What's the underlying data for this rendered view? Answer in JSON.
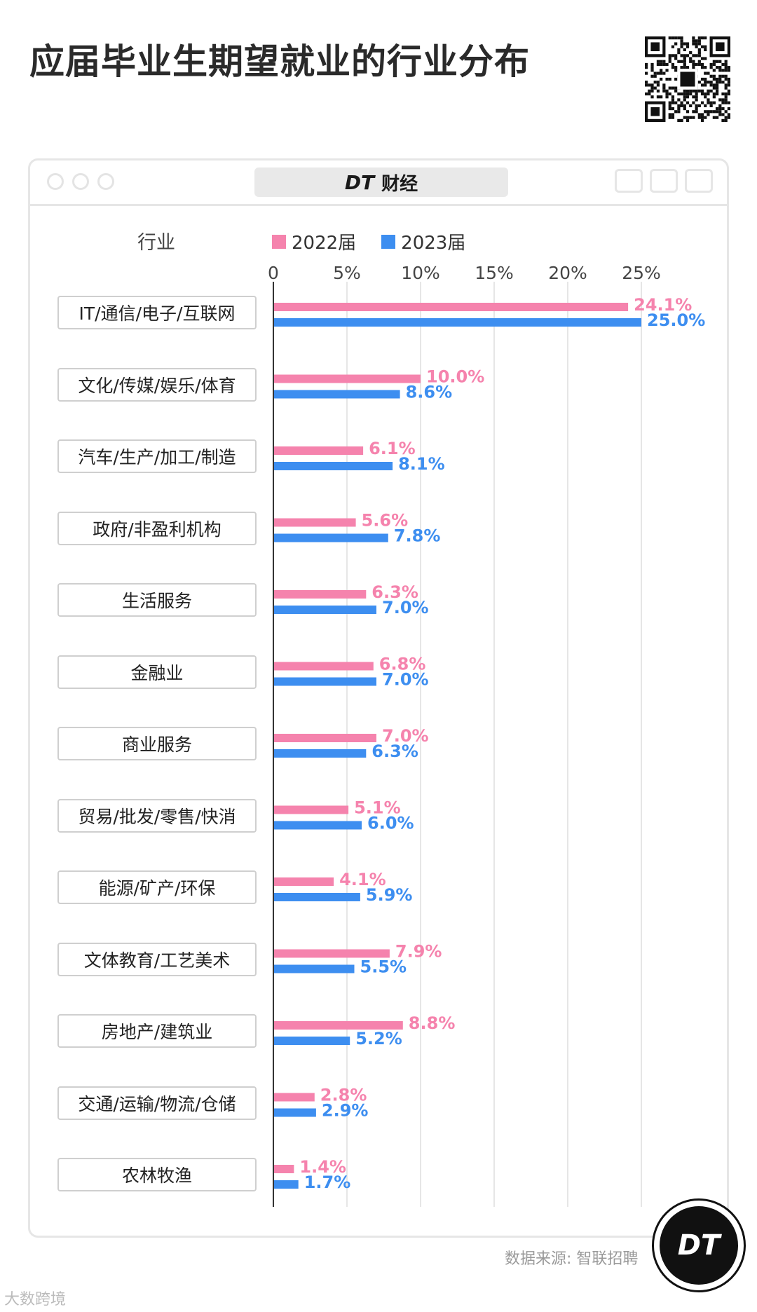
{
  "title": "应届毕业生期望就业的行业分布",
  "brand": {
    "mark": "DT",
    "name": "财经"
  },
  "source_text": "数据来源: 智联招聘",
  "badge_text": "DT",
  "watermark_text": "大数跨境",
  "colors": {
    "series_2022": "#f583ad",
    "series_2023": "#3d8ef0",
    "axis": "#333333",
    "grid": "#e6e6e6"
  },
  "chart_data": {
    "type": "bar",
    "orientation": "horizontal",
    "category_header": "行业",
    "categories": [
      "IT/通信/电子/互联网",
      "文化/传媒/娱乐/体育",
      "汽车/生产/加工/制造",
      "政府/非盈利机构",
      "生活服务",
      "金融业",
      "商业服务",
      "贸易/批发/零售/快消",
      "能源/矿产/环保",
      "文体教育/工艺美术",
      "房地产/建筑业",
      "交通/运输/物流/仓储",
      "农林牧渔"
    ],
    "series": [
      {
        "name": "2022届",
        "values": [
          24.1,
          10.0,
          6.1,
          5.6,
          6.3,
          6.8,
          7.0,
          5.1,
          4.1,
          7.9,
          8.8,
          2.8,
          1.4
        ],
        "labels": [
          "24.1%",
          "10.0%",
          "6.1%",
          "5.6%",
          "6.3%",
          "6.8%",
          "7.0%",
          "5.1%",
          "4.1%",
          "7.9%",
          "8.8%",
          "2.8%",
          "1.4%"
        ]
      },
      {
        "name": "2023届",
        "values": [
          25.0,
          8.6,
          8.1,
          7.8,
          7.0,
          7.0,
          6.3,
          6.0,
          5.9,
          5.5,
          5.2,
          2.9,
          1.7
        ],
        "labels": [
          "25.0%",
          "8.6%",
          "8.1%",
          "7.8%",
          "7.0%",
          "7.0%",
          "6.3%",
          "6.0%",
          "5.9%",
          "5.5%",
          "5.2%",
          "2.9%",
          "1.7%"
        ]
      }
    ],
    "x_ticks": [
      0,
      5,
      10,
      15,
      20,
      25
    ],
    "x_tick_labels": [
      "0",
      "5%",
      "10%",
      "15%",
      "20%",
      "25%"
    ],
    "xlim": [
      0,
      25
    ],
    "legend_position": "top",
    "grid": true
  }
}
